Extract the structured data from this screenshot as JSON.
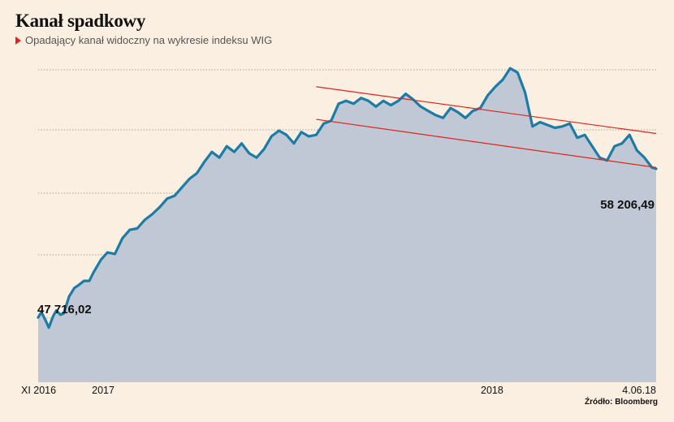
{
  "header": {
    "title": "Kanał spadkowy",
    "subtitle": "Opadający kanał widoczny na wykresie indeksu WIG"
  },
  "source": "Źródło: Bloomberg",
  "colors": {
    "background": "#fbefe1",
    "area_fill": "#c0c8d5",
    "line": "#1d7ca6",
    "channel": "#e2231a",
    "grid": "#8c8c8c",
    "marker": "#e2231a"
  },
  "chart_data": {
    "type": "area",
    "title": "Kanał spadkowy",
    "subtitle": "Opadający kanał widoczny na wykresie indeksu WIG",
    "x_start": "2016-11-01",
    "x_end": "2018-06-04",
    "ylim": [
      43200,
      66800
    ],
    "grid": true,
    "x_tick_labels": [
      {
        "label": "XI 2016",
        "date": "2016-11-01"
      },
      {
        "label": "2017",
        "date": "2017-01-01"
      },
      {
        "label": "2018",
        "date": "2018-01-01"
      },
      {
        "label": "4.06.18",
        "date": "2018-06-04"
      }
    ],
    "annotations": [
      {
        "text": "47 716,02",
        "date": "2016-11-01",
        "value": 47716.02
      },
      {
        "text": "58 206,49",
        "date": "2018-06-04",
        "value": 58206.49
      }
    ],
    "channel_lines": [
      {
        "start_date": "2017-07-20",
        "start_value": 64000,
        "end_date": "2018-06-04",
        "end_value": 60700
      },
      {
        "start_date": "2017-07-20",
        "start_value": 61700,
        "end_date": "2018-06-04",
        "end_value": 58300
      }
    ],
    "series": [
      {
        "points": [
          [
            "2016-11-01",
            47716
          ],
          [
            "2016-11-04",
            48100
          ],
          [
            "2016-11-08",
            47500
          ],
          [
            "2016-11-11",
            47000
          ],
          [
            "2016-11-15",
            47800
          ],
          [
            "2016-11-18",
            48200
          ],
          [
            "2016-11-22",
            47900
          ],
          [
            "2016-11-25",
            48000
          ],
          [
            "2016-11-30",
            49200
          ],
          [
            "2016-12-05",
            49800
          ],
          [
            "2016-12-09",
            50000
          ],
          [
            "2016-12-14",
            50300
          ],
          [
            "2016-12-19",
            50300
          ],
          [
            "2016-12-23",
            50900
          ],
          [
            "2016-12-30",
            51800
          ],
          [
            "2017-01-05",
            52300
          ],
          [
            "2017-01-12",
            52200
          ],
          [
            "2017-01-19",
            53300
          ],
          [
            "2017-01-26",
            53900
          ],
          [
            "2017-02-02",
            54000
          ],
          [
            "2017-02-09",
            54600
          ],
          [
            "2017-02-16",
            55000
          ],
          [
            "2017-02-23",
            55500
          ],
          [
            "2017-03-02",
            56100
          ],
          [
            "2017-03-09",
            56300
          ],
          [
            "2017-03-16",
            56900
          ],
          [
            "2017-03-23",
            57500
          ],
          [
            "2017-03-30",
            57900
          ],
          [
            "2017-04-06",
            58700
          ],
          [
            "2017-04-13",
            59400
          ],
          [
            "2017-04-20",
            59000
          ],
          [
            "2017-04-27",
            59800
          ],
          [
            "2017-05-04",
            59400
          ],
          [
            "2017-05-11",
            60000
          ],
          [
            "2017-05-18",
            59300
          ],
          [
            "2017-05-25",
            59000
          ],
          [
            "2017-06-01",
            59600
          ],
          [
            "2017-06-08",
            60500
          ],
          [
            "2017-06-15",
            60900
          ],
          [
            "2017-06-22",
            60600
          ],
          [
            "2017-06-29",
            60000
          ],
          [
            "2017-07-06",
            60800
          ],
          [
            "2017-07-13",
            60500
          ],
          [
            "2017-07-20",
            60600
          ],
          [
            "2017-07-27",
            61400
          ],
          [
            "2017-08-03",
            61600
          ],
          [
            "2017-08-10",
            62800
          ],
          [
            "2017-08-17",
            63000
          ],
          [
            "2017-08-24",
            62800
          ],
          [
            "2017-08-31",
            63200
          ],
          [
            "2017-09-07",
            63000
          ],
          [
            "2017-09-14",
            62600
          ],
          [
            "2017-09-21",
            63000
          ],
          [
            "2017-09-28",
            62700
          ],
          [
            "2017-10-05",
            63000
          ],
          [
            "2017-10-12",
            63500
          ],
          [
            "2017-10-19",
            63100
          ],
          [
            "2017-10-26",
            62600
          ],
          [
            "2017-11-02",
            62300
          ],
          [
            "2017-11-09",
            62000
          ],
          [
            "2017-11-16",
            61800
          ],
          [
            "2017-11-23",
            62500
          ],
          [
            "2017-11-30",
            62200
          ],
          [
            "2017-12-07",
            61800
          ],
          [
            "2017-12-14",
            62300
          ],
          [
            "2017-12-21",
            62500
          ],
          [
            "2017-12-28",
            63400
          ],
          [
            "2018-01-04",
            64000
          ],
          [
            "2018-01-11",
            64500
          ],
          [
            "2018-01-18",
            65300
          ],
          [
            "2018-01-25",
            65000
          ],
          [
            "2018-02-01",
            63600
          ],
          [
            "2018-02-08",
            61200
          ],
          [
            "2018-02-15",
            61500
          ],
          [
            "2018-02-22",
            61300
          ],
          [
            "2018-03-01",
            61100
          ],
          [
            "2018-03-08",
            61200
          ],
          [
            "2018-03-15",
            61400
          ],
          [
            "2018-03-22",
            60400
          ],
          [
            "2018-03-29",
            60600
          ],
          [
            "2018-04-05",
            59800
          ],
          [
            "2018-04-12",
            59000
          ],
          [
            "2018-04-19",
            58800
          ],
          [
            "2018-04-26",
            59800
          ],
          [
            "2018-05-03",
            60000
          ],
          [
            "2018-05-10",
            60600
          ],
          [
            "2018-05-17",
            59500
          ],
          [
            "2018-05-24",
            59000
          ],
          [
            "2018-05-31",
            58300
          ],
          [
            "2018-06-04",
            58206
          ]
        ]
      }
    ]
  }
}
